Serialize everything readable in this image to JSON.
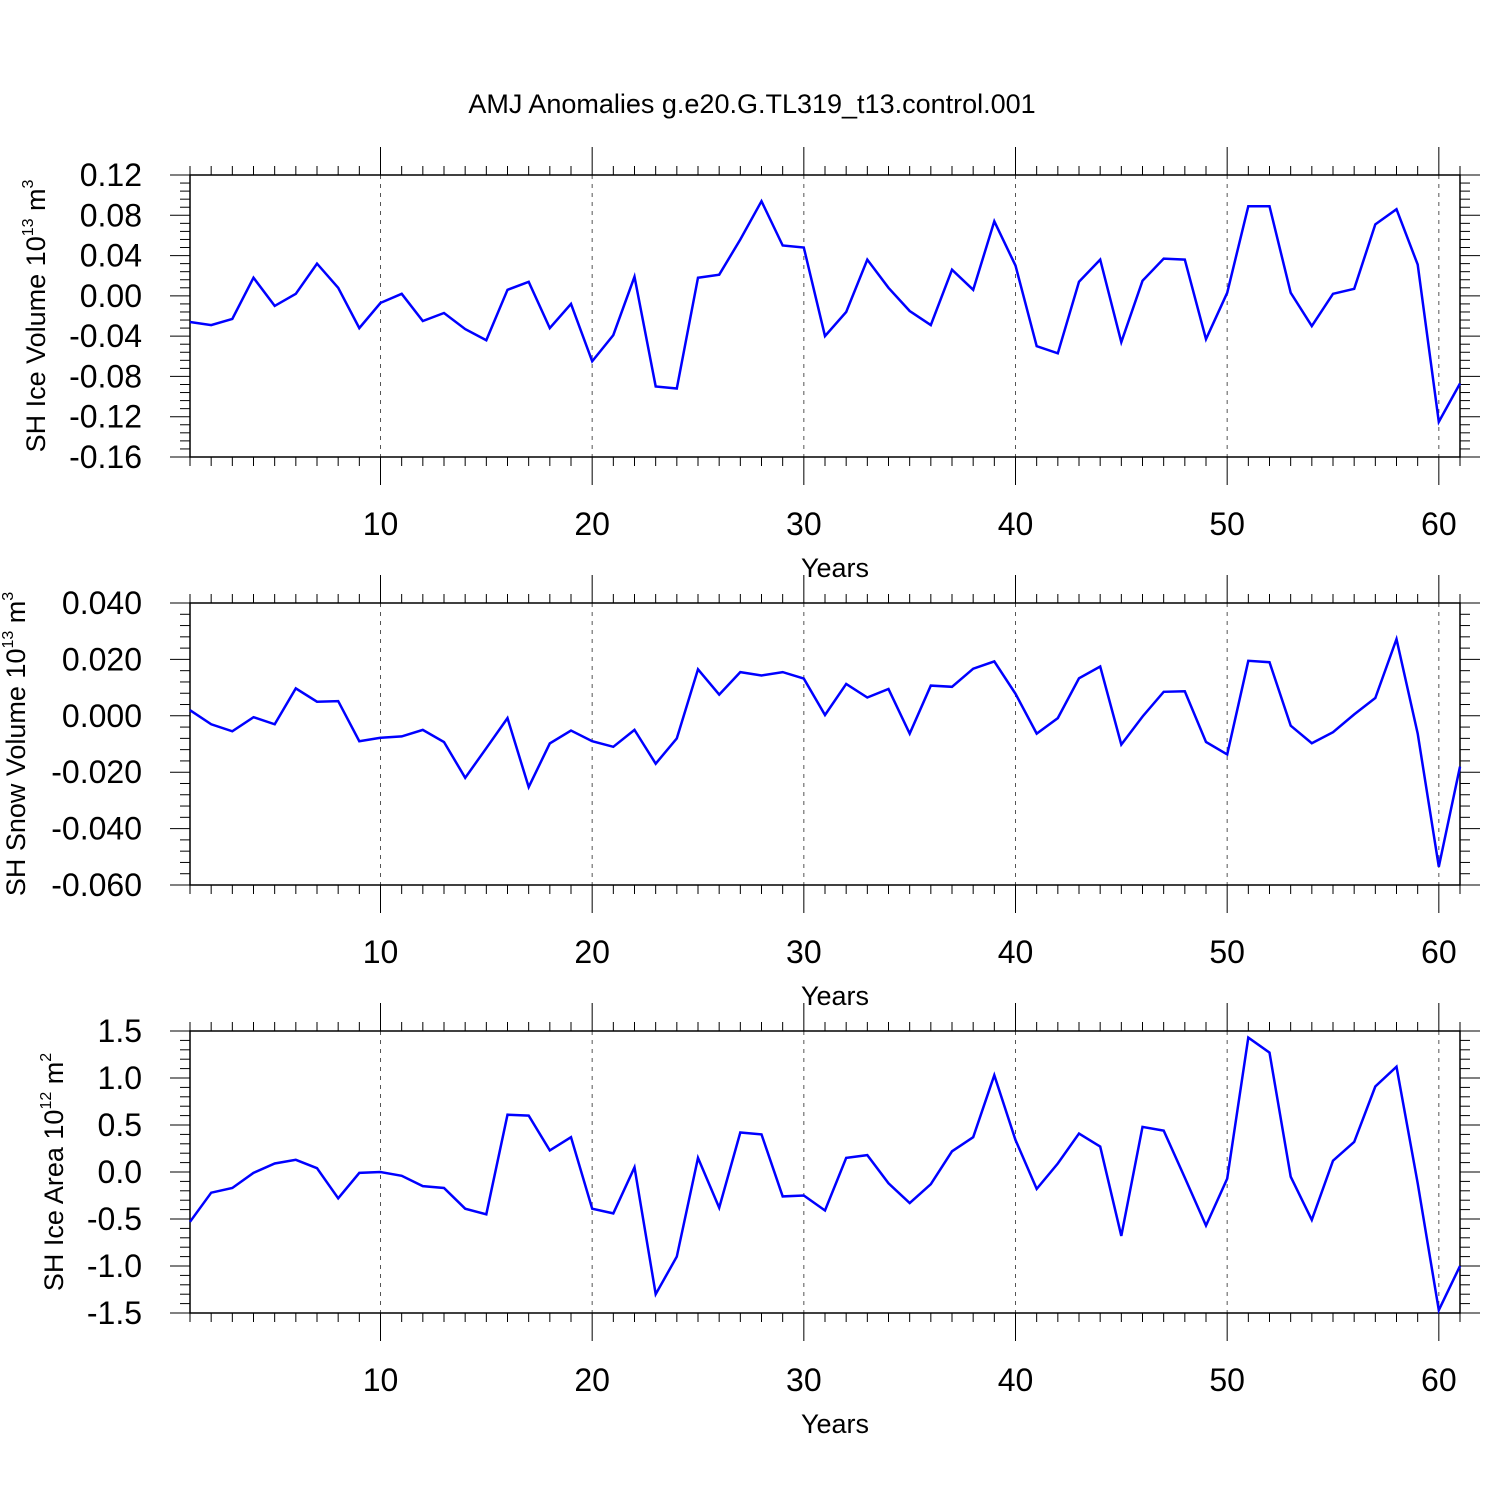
{
  "title": "AMJ Anomalies g.e20.G.TL319_t13.control.001",
  "line_color": "#0000ff",
  "chart_data": [
    {
      "type": "line",
      "ylabel": {
        "text": "SH Ice Volume 10",
        "sup": "13",
        "unit": " m",
        "unit_sup": "3"
      },
      "xlabel": "Years",
      "xlim": [
        1,
        61
      ],
      "ylim": [
        -0.16,
        0.12
      ],
      "yticks": [
        -0.16,
        -0.12,
        -0.08,
        -0.04,
        0.0,
        0.04,
        0.08,
        0.12
      ],
      "ytick_labels": [
        "-0.16",
        "-0.12",
        "-0.08",
        "-0.04",
        "0.00",
        "0.04",
        "0.08",
        "0.12"
      ],
      "xticks": [
        10,
        20,
        30,
        40,
        50,
        60
      ],
      "xtick_labels": [
        "10",
        "20",
        "30",
        "40",
        "50",
        "60"
      ],
      "grid": "vertical dashed at major x ticks",
      "series": [
        {
          "x": [
            1,
            2,
            3,
            4,
            5,
            6,
            7,
            8,
            9,
            10,
            11,
            12,
            13,
            14,
            15,
            16,
            17,
            18,
            19,
            20,
            21,
            22,
            23,
            24,
            25,
            26,
            27,
            28,
            29,
            30,
            31,
            32,
            33,
            34,
            35,
            36,
            37,
            38,
            39,
            40,
            41,
            42,
            43,
            44,
            45,
            46,
            47,
            48,
            49,
            50,
            51,
            52,
            53,
            54,
            55,
            56,
            57,
            58,
            59,
            60,
            61
          ],
          "y": [
            -0.026,
            -0.029,
            -0.023,
            0.018,
            -0.01,
            0.002,
            0.032,
            0.008,
            -0.032,
            -0.007,
            0.002,
            -0.025,
            -0.017,
            -0.033,
            -0.044,
            0.006,
            0.014,
            -0.032,
            -0.008,
            -0.065,
            -0.039,
            0.019,
            -0.09,
            -0.092,
            0.018,
            0.021,
            0.056,
            0.094,
            0.05,
            0.048,
            -0.04,
            -0.016,
            0.036,
            0.008,
            -0.015,
            -0.029,
            0.026,
            0.006,
            0.074,
            0.03,
            -0.05,
            -0.057,
            0.014,
            0.036,
            -0.046,
            0.015,
            0.037,
            0.036,
            -0.043,
            0.003,
            0.089,
            0.089,
            0.003,
            -0.03,
            0.002,
            0.007,
            0.071,
            0.086,
            0.031,
            -0.125,
            -0.087
          ]
        }
      ]
    },
    {
      "type": "line",
      "ylabel": {
        "text": "SH Snow Volume 10",
        "sup": "13",
        "unit": " m",
        "unit_sup": "3"
      },
      "xlabel": "Years",
      "xlim": [
        1,
        61
      ],
      "ylim": [
        -0.06,
        0.04
      ],
      "yticks": [
        -0.06,
        -0.04,
        -0.02,
        0.0,
        0.02,
        0.04
      ],
      "ytick_labels": [
        "-0.060",
        "-0.040",
        "-0.020",
        "0.000",
        "0.020",
        "0.040"
      ],
      "xticks": [
        10,
        20,
        30,
        40,
        50,
        60
      ],
      "xtick_labels": [
        "10",
        "20",
        "30",
        "40",
        "50",
        "60"
      ],
      "grid": "vertical dashed at major x ticks",
      "series": [
        {
          "x": [
            1,
            2,
            3,
            4,
            5,
            6,
            7,
            8,
            9,
            10,
            11,
            12,
            13,
            14,
            15,
            16,
            17,
            18,
            19,
            20,
            21,
            22,
            23,
            24,
            25,
            26,
            27,
            28,
            29,
            30,
            31,
            32,
            33,
            34,
            35,
            36,
            37,
            38,
            39,
            40,
            41,
            42,
            43,
            44,
            45,
            46,
            47,
            48,
            49,
            50,
            51,
            52,
            53,
            54,
            55,
            56,
            57,
            58,
            59,
            60,
            61
          ],
          "y": [
            0.002,
            -0.003,
            -0.0055,
            -0.0005,
            -0.003,
            0.0097,
            0.005,
            0.0052,
            -0.009,
            -0.0078,
            -0.0073,
            -0.005,
            -0.0093,
            -0.022,
            -0.0115,
            -0.0008,
            -0.0253,
            -0.0098,
            -0.0052,
            -0.009,
            -0.011,
            -0.005,
            -0.017,
            -0.008,
            0.0165,
            0.0075,
            0.0155,
            0.0143,
            0.0155,
            0.0132,
            0.0003,
            0.0113,
            0.0065,
            0.0095,
            -0.0063,
            0.0107,
            0.0103,
            0.0167,
            0.0193,
            0.0078,
            -0.0063,
            -0.0008,
            0.0133,
            0.0175,
            -0.0102,
            -0.0003,
            0.0085,
            0.0087,
            -0.0093,
            -0.0137,
            0.0195,
            0.019,
            -0.0035,
            -0.0097,
            -0.0058,
            0.0005,
            0.0063,
            0.0272,
            -0.0063,
            -0.0535,
            -0.018
          ]
        }
      ]
    },
    {
      "type": "line",
      "ylabel": {
        "text": "SH Ice Area 10",
        "sup": "12",
        "unit": " m",
        "unit_sup": "2"
      },
      "xlabel": "Years",
      "xlim": [
        1,
        61
      ],
      "ylim": [
        -1.5,
        1.5
      ],
      "yticks": [
        -1.5,
        -1.0,
        -0.5,
        0.0,
        0.5,
        1.0,
        1.5
      ],
      "ytick_labels": [
        "-1.5",
        "-1.0",
        "-0.5",
        "0.0",
        "0.5",
        "1.0",
        "1.5"
      ],
      "xticks": [
        10,
        20,
        30,
        40,
        50,
        60
      ],
      "xtick_labels": [
        "10",
        "20",
        "30",
        "40",
        "50",
        "60"
      ],
      "grid": "vertical dashed at major x ticks",
      "series": [
        {
          "x": [
            1,
            2,
            3,
            4,
            5,
            6,
            7,
            8,
            9,
            10,
            11,
            12,
            13,
            14,
            15,
            16,
            17,
            18,
            19,
            20,
            21,
            22,
            23,
            24,
            25,
            26,
            27,
            28,
            29,
            30,
            31,
            32,
            33,
            34,
            35,
            36,
            37,
            38,
            39,
            40,
            41,
            42,
            43,
            44,
            45,
            46,
            47,
            48,
            49,
            50,
            51,
            52,
            53,
            54,
            55,
            56,
            57,
            58,
            59,
            60,
            61
          ],
          "y": [
            -0.53,
            -0.22,
            -0.17,
            -0.01,
            0.09,
            0.13,
            0.04,
            -0.28,
            -0.01,
            0.0,
            -0.04,
            -0.15,
            -0.17,
            -0.39,
            -0.45,
            0.61,
            0.6,
            0.23,
            0.37,
            -0.39,
            -0.44,
            0.05,
            -1.3,
            -0.9,
            0.15,
            -0.38,
            0.42,
            0.4,
            -0.26,
            -0.25,
            -0.41,
            0.15,
            0.18,
            -0.12,
            -0.33,
            -0.13,
            0.22,
            0.37,
            1.03,
            0.34,
            -0.18,
            0.09,
            0.41,
            0.27,
            -0.68,
            0.48,
            0.44,
            -0.06,
            -0.57,
            -0.07,
            1.43,
            1.27,
            -0.05,
            -0.51,
            0.12,
            0.32,
            0.91,
            1.12,
            -0.12,
            -1.47,
            -1.0
          ]
        }
      ]
    }
  ]
}
